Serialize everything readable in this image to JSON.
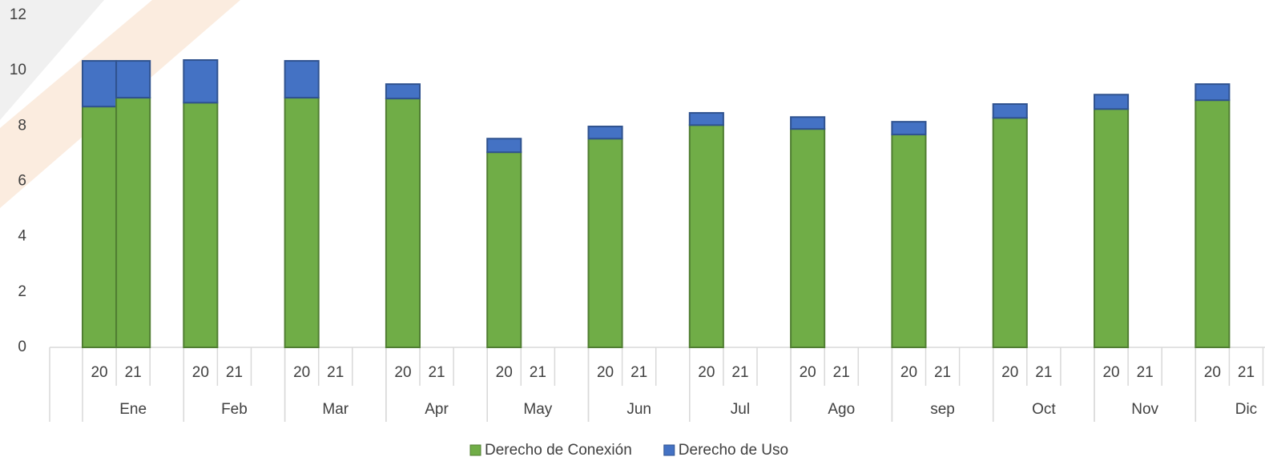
{
  "chart_data": {
    "type": "bar",
    "stacked": true,
    "categories": [
      "Ene",
      "Feb",
      "Mar",
      "Apr",
      "May",
      "Jun",
      "Jul",
      "Ago",
      "sep",
      "Oct",
      "Nov",
      "Dic"
    ],
    "subcategories": [
      "20",
      "21"
    ],
    "series": [
      {
        "name": "Derecho de Conexión",
        "color": "#70ad47",
        "values": [
          [
            8.7,
            9.02
          ],
          [
            8.84,
            null
          ],
          [
            9.02,
            null
          ],
          [
            8.99,
            null
          ],
          [
            7.05,
            null
          ],
          [
            7.54,
            null
          ],
          [
            8.03,
            null
          ],
          [
            7.89,
            null
          ],
          [
            7.69,
            null
          ],
          [
            8.29,
            null
          ],
          [
            8.61,
            null
          ],
          [
            8.93,
            null
          ]
        ]
      },
      {
        "name": "Derecho de Uso",
        "color": "#4472c4",
        "values": [
          [
            1.65,
            1.33
          ],
          [
            1.54,
            null
          ],
          [
            1.33,
            null
          ],
          [
            0.52,
            null
          ],
          [
            0.49,
            null
          ],
          [
            0.44,
            null
          ],
          [
            0.44,
            null
          ],
          [
            0.43,
            null
          ],
          [
            0.46,
            null
          ],
          [
            0.5,
            null
          ],
          [
            0.52,
            null
          ],
          [
            0.58,
            null
          ]
        ]
      }
    ],
    "ylim": [
      0,
      12
    ],
    "yticks": [
      0,
      2,
      4,
      6,
      8,
      10,
      12
    ],
    "legend": "bottom"
  }
}
